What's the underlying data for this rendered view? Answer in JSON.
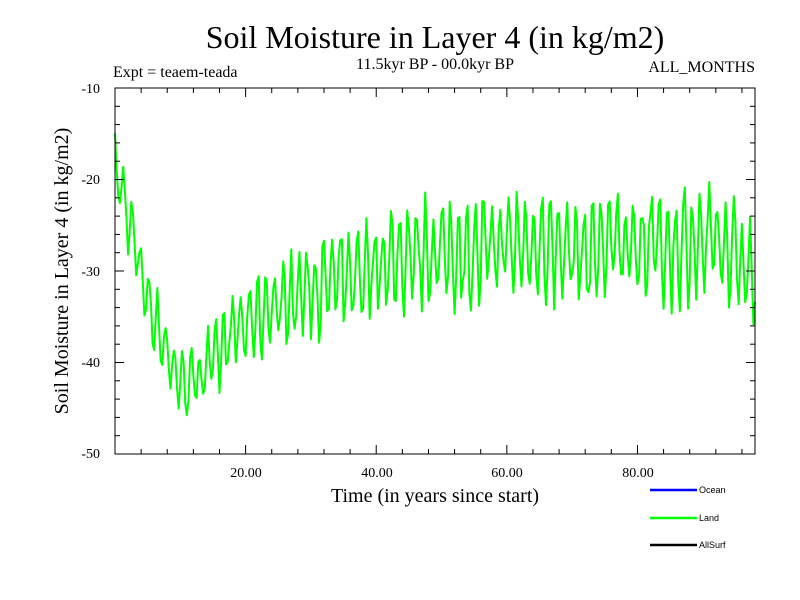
{
  "chart_data": {
    "type": "line",
    "title": "Soil Moisture in Layer 4 (in kg/m2)",
    "subtitle": "11.5kyr BP - 00.0kyr BP",
    "experiment_label": "Expt = teaem-teada",
    "months_label": "ALL_MONTHS",
    "xlabel": "Time (in years since start)",
    "ylabel": "Soil Moisture in Layer 4 (in kg/m2)",
    "xlim": [
      0,
      98
    ],
    "ylim": [
      -50,
      -10
    ],
    "x_ticks": [
      20,
      40,
      60,
      80
    ],
    "x_tick_labels": [
      "20.00",
      "40.00",
      "60.00",
      "80.00"
    ],
    "y_ticks": [
      -50,
      -40,
      -30,
      -20,
      -10
    ],
    "y_tick_labels": [
      "-50",
      "-40",
      "-30",
      "-20",
      "-10"
    ],
    "legend_position": "bottom-right",
    "series": [
      {
        "name": "Ocean",
        "legend_label": "Ocean",
        "color": "#0000ff",
        "x": [],
        "values": []
      },
      {
        "name": "Land",
        "legend_label": "Land",
        "color": "#00ff00",
        "sample_interval_years": 0.25,
        "x": [
          0,
          1,
          2,
          3,
          4,
          5,
          6,
          7,
          8,
          9,
          10,
          11,
          12,
          13,
          14,
          15,
          16,
          17,
          18,
          19,
          20,
          21,
          22,
          23,
          24,
          25,
          26,
          27,
          28,
          29,
          30,
          31,
          32,
          33,
          34,
          35,
          36,
          37,
          38,
          39,
          40,
          41,
          42,
          43,
          44,
          45,
          46,
          47,
          48,
          49,
          50,
          51,
          52,
          53,
          54,
          55,
          56,
          57,
          58,
          59,
          60,
          61,
          62,
          63,
          64,
          65,
          66,
          67,
          68,
          69,
          70,
          71,
          72,
          73,
          74,
          75,
          76,
          77,
          78,
          79,
          80,
          81,
          82,
          83,
          84,
          85,
          86,
          87,
          88,
          89,
          90,
          91,
          92,
          93,
          94,
          95,
          96,
          97,
          98
        ],
        "mean": [
          -19,
          -21,
          -24,
          -27,
          -30,
          -33,
          -35,
          -37,
          -39,
          -41,
          -42,
          -42,
          -42,
          -41,
          -40,
          -40,
          -39,
          -38,
          -37,
          -36,
          -36,
          -35,
          -35,
          -34,
          -34,
          -34,
          -33,
          -33,
          -33,
          -32,
          -32,
          -32,
          -32,
          -31,
          -31,
          -31,
          -31,
          -30,
          -30,
          -30,
          -29,
          -29,
          -29,
          -29,
          -28,
          -28,
          -28,
          -28,
          -28,
          -28,
          -28,
          -28,
          -28,
          -28,
          -28,
          -28,
          -28,
          -27.5,
          -27,
          -27,
          -27,
          -27,
          -27,
          -27,
          -27,
          -27,
          -27.5,
          -27.5,
          -27.5,
          -27.5,
          -28,
          -28,
          -28,
          -28,
          -27.5,
          -27,
          -27,
          -27,
          -27,
          -27,
          -27,
          -27,
          -27,
          -27,
          -27.5,
          -27.5,
          -27.5,
          -27,
          -27,
          -27,
          -27,
          -27,
          -27,
          -27.5,
          -28,
          -28.5,
          -29,
          -29.5,
          -30
        ],
        "amplitude": [
          3,
          3,
          3,
          3,
          3,
          3,
          3,
          3,
          3,
          3,
          3,
          3,
          3,
          3,
          3,
          3,
          3.5,
          3.5,
          3.5,
          3.5,
          3.5,
          3.5,
          4,
          4,
          4,
          4,
          4,
          4,
          4,
          4,
          4,
          4,
          4.5,
          4.5,
          4.5,
          4.5,
          4.5,
          4.5,
          4.5,
          4.5,
          4.5,
          4.5,
          4.5,
          5,
          5,
          5,
          5,
          5,
          5,
          5,
          5,
          5,
          5,
          5,
          5,
          5,
          5,
          5,
          5,
          5,
          5,
          5,
          5,
          5,
          5,
          5,
          5,
          5,
          5,
          5,
          5,
          5,
          5,
          5,
          5,
          5,
          5,
          5,
          5,
          5,
          5,
          5,
          5,
          5,
          5,
          5,
          5,
          5,
          5,
          5,
          5,
          5,
          5,
          5,
          5,
          5,
          5,
          5,
          5
        ]
      },
      {
        "name": "AllSurf",
        "legend_label": "AllSurf",
        "color": "#000000",
        "x": [],
        "values": []
      }
    ]
  }
}
